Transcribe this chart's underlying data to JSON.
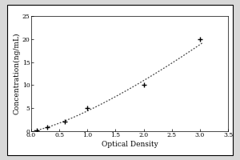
{
  "x_data": [
    0.094,
    0.281,
    0.6,
    1.0,
    2.0,
    3.0
  ],
  "y_data": [
    0.2,
    0.8,
    2.0,
    5.0,
    10.0,
    20.0
  ],
  "xlabel": "Optical Density",
  "ylabel": "Concentration(ng/mL)",
  "xlim": [
    0,
    3.5
  ],
  "ylim": [
    0,
    25
  ],
  "xticks": [
    0,
    0.5,
    1.0,
    1.5,
    2.0,
    2.5,
    3.0,
    3.5
  ],
  "yticks": [
    0,
    5,
    10,
    15,
    20,
    25
  ],
  "marker": "+",
  "marker_color": "#000000",
  "line_color": "#444444",
  "background_color": "#ffffff",
  "outer_bg": "#d8d8d8",
  "font_size_label": 6.5,
  "font_size_tick": 5.5,
  "fig_width": 3.0,
  "fig_height": 2.0
}
